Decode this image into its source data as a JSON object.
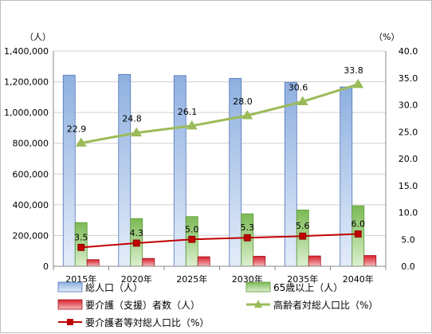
{
  "chart_data": {
    "type": "bar",
    "categories": [
      "2015年",
      "2020年",
      "2025年",
      "2030年",
      "2035年",
      "2040年"
    ],
    "y_left_unit": "（人）",
    "y_right_unit": "（%）",
    "y_left_ticks": [
      "0",
      "200,000",
      "400,000",
      "600,000",
      "800,000",
      "1,000,000",
      "1,200,000",
      "1,400,000"
    ],
    "y_right_ticks": [
      "0.0",
      "5.0",
      "10.0",
      "15.0",
      "20.0",
      "25.0",
      "30.0",
      "35.0",
      "40.0"
    ],
    "ylim_left": [
      0,
      1400000
    ],
    "ylim_right": [
      0,
      40
    ],
    "grid": true,
    "legend_position": "bottom",
    "series": [
      {
        "name": "総人口（人）",
        "kind": "bar",
        "axis": "left",
        "color": "#9db8e3",
        "values": [
          1243000,
          1248000,
          1240000,
          1222000,
          1196000,
          1166000
        ]
      },
      {
        "name": "65歳以上（人）",
        "kind": "bar",
        "axis": "left",
        "color": "#8cc46a",
        "values": [
          284000,
          310000,
          323000,
          341000,
          366000,
          393000
        ]
      },
      {
        "name": "要介護（支援）者数（人）",
        "kind": "bar",
        "axis": "left",
        "color": "#e0303a",
        "values": [
          43000,
          51000,
          62000,
          65000,
          67000,
          70000
        ]
      },
      {
        "name": "高齢者対総人口比（%）",
        "kind": "line",
        "axis": "right",
        "color": "#9bbb59",
        "values": [
          22.9,
          24.8,
          26.1,
          28.0,
          30.6,
          33.8
        ],
        "labels": [
          "22.9",
          "24.8",
          "26.1",
          "28.0",
          "30.6",
          "33.8"
        ]
      },
      {
        "name": "要介護者等対総人口比（%）",
        "kind": "line",
        "axis": "right",
        "color": "#c00000",
        "values": [
          3.5,
          4.3,
          5.0,
          5.3,
          5.6,
          6.0
        ],
        "labels": [
          "3.5",
          "4.3",
          "5.0",
          "5.3",
          "5.6",
          "6.0"
        ]
      }
    ]
  }
}
